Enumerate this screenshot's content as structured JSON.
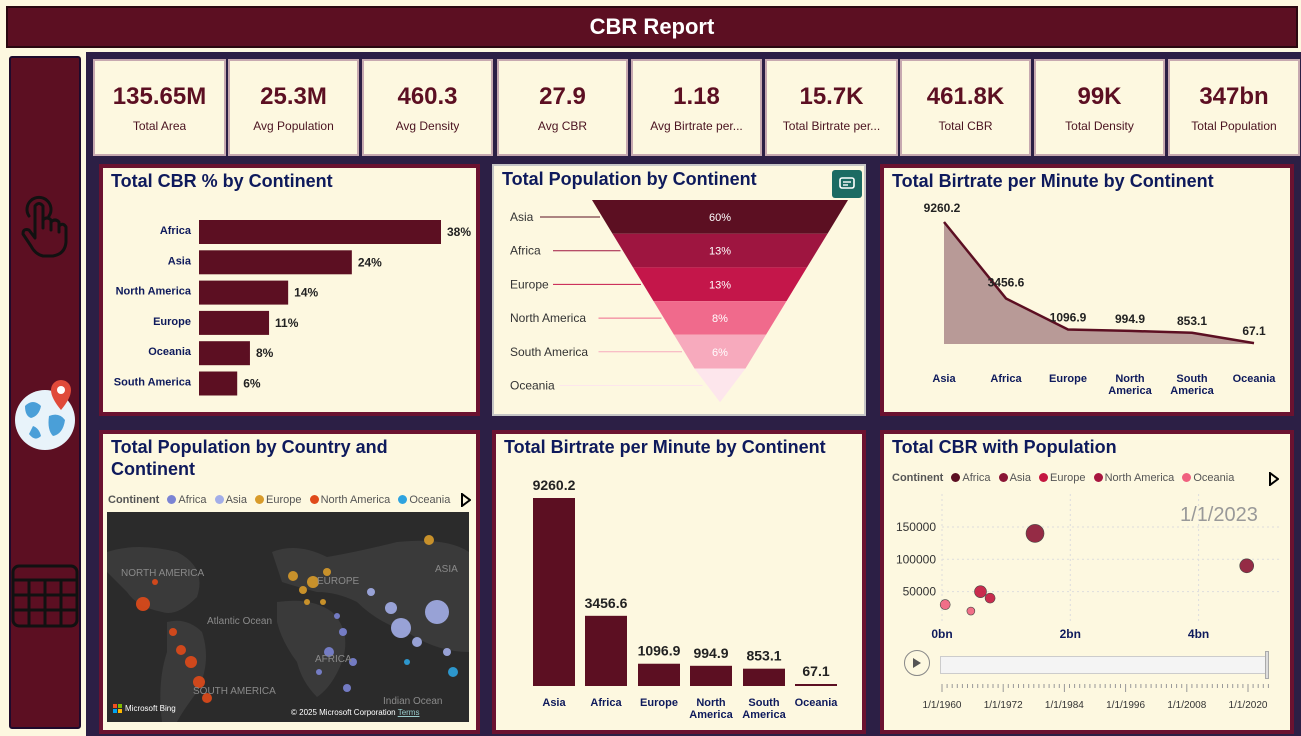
{
  "header": {
    "title": "CBR Report"
  },
  "kpis": [
    {
      "value": "135.65M",
      "label": "Total Area"
    },
    {
      "value": "25.3M",
      "label": "Avg Population"
    },
    {
      "value": "460.3",
      "label": "Avg Density"
    },
    {
      "value": "27.9",
      "label": "Avg CBR"
    },
    {
      "value": "1.18",
      "label": "Avg Birtrate per..."
    },
    {
      "value": "15.7K",
      "label": "Total Birtrate per..."
    },
    {
      "value": "461.8K",
      "label": "Total CBR"
    },
    {
      "value": "99K",
      "label": "Total Density"
    },
    {
      "value": "347bn",
      "label": "Total Population"
    }
  ],
  "panels": {
    "cbr_pct": {
      "title": "Total CBR % by Continent"
    },
    "pop_funnel": {
      "title": "Total Population by Continent"
    },
    "birtrate_area": {
      "title": "Total Birtrate per Minute by Continent"
    },
    "map": {
      "title": "Total Population by Country and Continent",
      "legend_title": "Continent",
      "legend": [
        "Africa",
        "Asia",
        "Europe",
        "North America",
        "Oceania"
      ],
      "labels": [
        "NORTH AMERICA",
        "EUROPE",
        "ASIA",
        "Atlantic Ocean",
        "AFRICA",
        "SOUTH AMERICA",
        "Indian Ocean"
      ],
      "credit": "Microsoft Bing",
      "copyright": "© 2025 Microsoft Corporation",
      "terms": "Terms"
    },
    "birtrate_bar": {
      "title": "Total Birtrate per Minute by Continent"
    },
    "scatter": {
      "title": "Total CBR with Population",
      "legend_title": "Continent",
      "legend": [
        "Africa",
        "Asia",
        "Europe",
        "North America",
        "Oceania"
      ],
      "date_label": "1/1/2023"
    }
  },
  "colors": {
    "maroon": "#5c0f22",
    "navy": "#0e1a5c",
    "map_africa": "#7b84d4",
    "map_asia": "#a3aee8",
    "map_europe": "#d89b2a",
    "map_north_america": "#e04a1a",
    "map_oceania": "#2ea3df",
    "sc_africa": "#5c0f22",
    "sc_asia": "#8a1535",
    "sc_europe": "#c4163f",
    "sc_north_america": "#a8163f",
    "sc_oceania": "#f0617f"
  },
  "chart_data": [
    {
      "type": "bar",
      "orientation": "horizontal",
      "title": "Total CBR % by Continent",
      "categories": [
        "Africa",
        "Asia",
        "North America",
        "Europe",
        "Oceania",
        "South America"
      ],
      "values": [
        38,
        24,
        14,
        11,
        8,
        6
      ],
      "labels": [
        "38%",
        "24%",
        "14%",
        "11%",
        "8%",
        "6%"
      ]
    },
    {
      "type": "bar",
      "subtype": "funnel",
      "title": "Total Population by Continent",
      "categories": [
        "Asia",
        "Africa",
        "Europe",
        "North America",
        "South America",
        "Oceania"
      ],
      "values": [
        60,
        13,
        13,
        8,
        6,
        0
      ],
      "labels": [
        "60%",
        "13%",
        "13%",
        "8%",
        "6%",
        ""
      ],
      "colors": [
        "#5c0f22",
        "#9e1540",
        "#c4164a",
        "#f06a8c",
        "#f7aabd",
        "#fde6ec"
      ]
    },
    {
      "type": "area",
      "title": "Total Birtrate per Minute by Continent",
      "categories": [
        "Asia",
        "Africa",
        "Europe",
        "North America",
        "South America",
        "Oceania"
      ],
      "values": [
        9260.2,
        3456.6,
        1096.9,
        994.9,
        853.1,
        67.1
      ],
      "labels": [
        "9260.2",
        "3456.6",
        "1096.9",
        "994.9",
        "853.1",
        "67.1"
      ]
    },
    {
      "type": "bar",
      "title": "Total Birtrate per Minute by Continent",
      "categories": [
        "Asia",
        "Africa",
        "Europe",
        "North America",
        "South America",
        "Oceania"
      ],
      "values": [
        9260.2,
        3456.6,
        1096.9,
        994.9,
        853.1,
        67.1
      ],
      "labels": [
        "9260.2",
        "3456.6",
        "1096.9",
        "994.9",
        "853.1",
        "67.1"
      ]
    },
    {
      "type": "scatter",
      "title": "Total CBR with Population",
      "x_ticks": [
        "0bn",
        "2bn",
        "4bn"
      ],
      "y_ticks": [
        "150000",
        "100000",
        "50000"
      ],
      "xlim": [
        0,
        5.3
      ],
      "ylim": [
        0,
        170000
      ],
      "points": [
        {
          "x": 1.45,
          "y": 140000,
          "series": "Asia"
        },
        {
          "x": 4.75,
          "y": 90000,
          "series": "Asia"
        },
        {
          "x": 0.6,
          "y": 50000,
          "series": "Africa"
        },
        {
          "x": 0.75,
          "y": 40000,
          "series": "Africa"
        },
        {
          "x": 0.05,
          "y": 30000,
          "series": "Oceania"
        },
        {
          "x": 0.45,
          "y": 20000,
          "series": "Oceania"
        }
      ],
      "timeline": [
        "1/1/1960",
        "1/1/1972",
        "1/1/1984",
        "1/1/1996",
        "1/1/2008",
        "1/1/2020"
      ]
    }
  ]
}
